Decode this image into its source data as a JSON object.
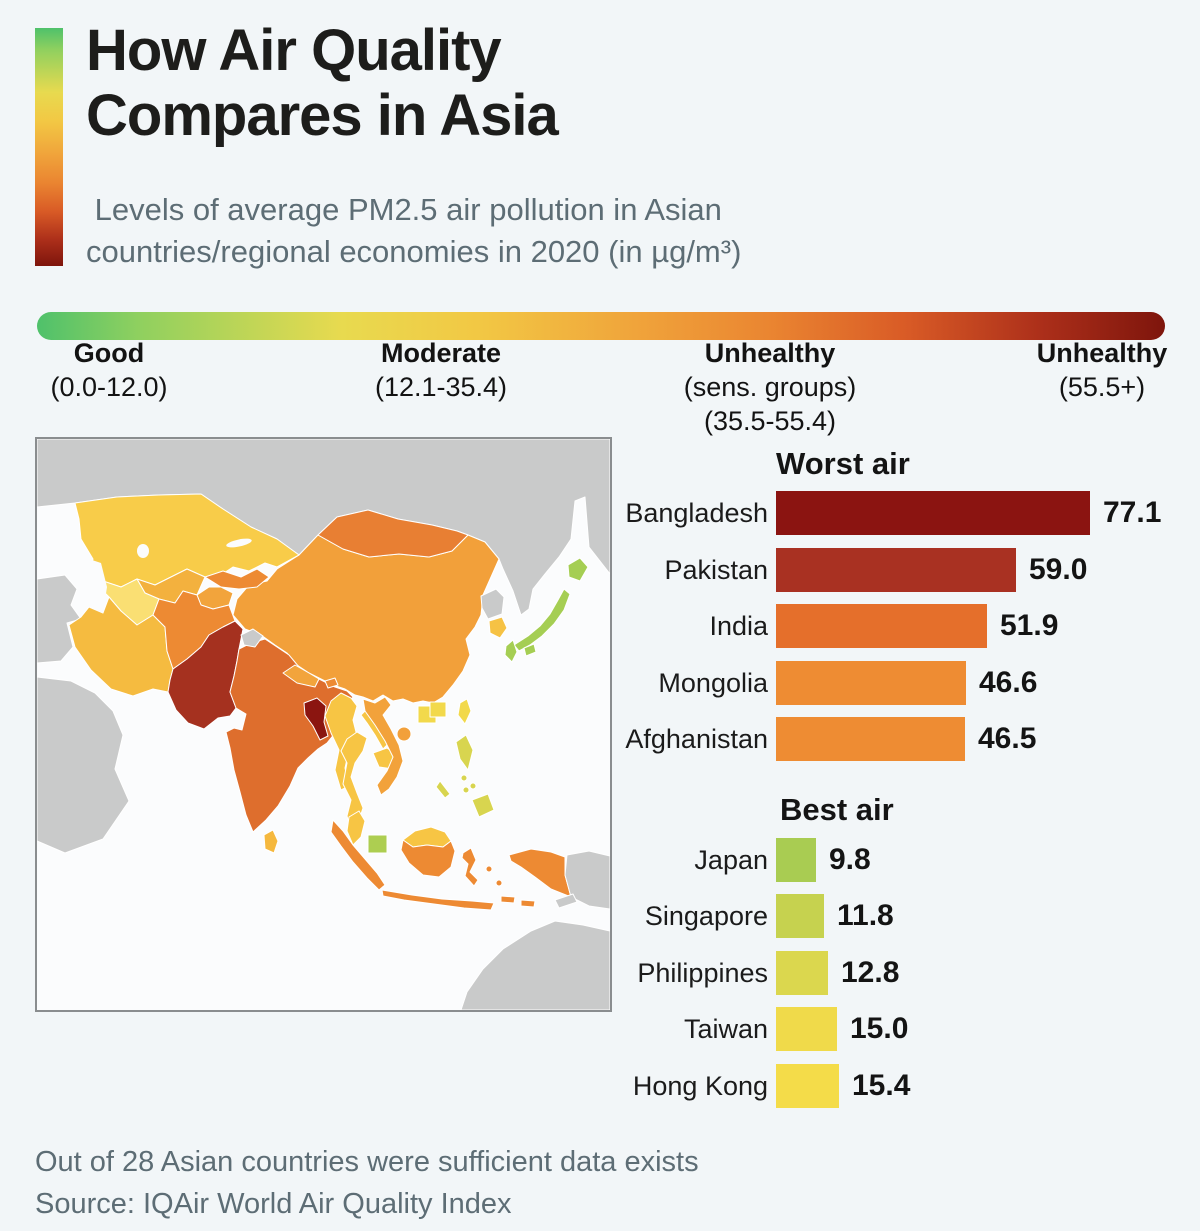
{
  "header": {
    "title": "How Air Quality\nCompares in Asia",
    "subtitle": " Levels of average PM2.5 air pollution in Asian\ncountries/regional economies in 2020 (in µg/m³)"
  },
  "legend": {
    "gradient_stops": [
      "#4FC16B 0%",
      "#8FD05F 9%",
      "#E8DA4F 27%",
      "#F2C844 39%",
      "#F0A43B 53%",
      "#EA8531 65%",
      "#D95B26 77%",
      "#AC2F1A 89%",
      "#7E150C 100%"
    ],
    "categories": [
      {
        "name": "Good",
        "range": "(0.0-12.0)"
      },
      {
        "name": "Moderate",
        "range": "(12.1-35.4)"
      },
      {
        "name": "Unhealthy",
        "range": "(sens. groups)\n(35.5-55.4)"
      },
      {
        "name": "Unhealthy",
        "range": "(55.5+)"
      }
    ]
  },
  "chart_data": [
    {
      "type": "bar",
      "title": "Worst air",
      "categories": [
        "Bangladesh",
        "Pakistan",
        "India",
        "Mongolia",
        "Afghanistan"
      ],
      "values": [
        77.1,
        59.0,
        51.9,
        46.6,
        46.5
      ],
      "value_labels": [
        "77.1",
        "59.0",
        "51.9",
        "46.6",
        "46.5"
      ],
      "bar_colors": [
        "#8B1411",
        "#A93122",
        "#E56F2B",
        "#EE8C33",
        "#EE8C33"
      ],
      "xlim": [
        0,
        77.1
      ],
      "unit": "µg/m³"
    },
    {
      "type": "bar",
      "title": "Best air",
      "categories": [
        "Japan",
        "Singapore",
        "Philippines",
        "Taiwan",
        "Hong Kong"
      ],
      "values": [
        9.8,
        11.8,
        12.8,
        15.0,
        15.4
      ],
      "value_labels": [
        "9.8",
        "11.8",
        "12.8",
        "15.0",
        "15.4"
      ],
      "bar_colors": [
        "#A9CC52",
        "#C6D24F",
        "#DBD74E",
        "#F0DA4A",
        "#F4DC49"
      ],
      "xlim": [
        0,
        77.1
      ],
      "unit": "µg/m³"
    }
  ],
  "map": {
    "region_colors": {
      "sea": "#FBFCFD",
      "no_data": "#C9CACA",
      "kazakhstan": "#F8CC49",
      "uzbekistan": "#F3B13E",
      "turkmenistan": "#FADF73",
      "kyrgyzstan": "#ED8A33",
      "tajikistan": "#F2A43C",
      "iran": "#F5BB40",
      "afghanistan": "#ED8A33",
      "pakistan": "#A5311F",
      "india": "#DE6E2D",
      "nepal": "#F2A43C",
      "bhutan": "#ED8A33",
      "bangladesh": "#8B1510",
      "sri_lanka": "#F5B83E",
      "china": "#F2A03A",
      "mongolia": "#E87F33",
      "myanmar": "#F7C544",
      "thailand": "#F7C544",
      "laos": "#F7C544",
      "cambodia": "#F7C544",
      "vietnam": "#F2A23B",
      "malaysia": "#F7C544",
      "singapore": "#ADCE51",
      "indonesia": "#ED8A33",
      "philippines": "#D8D54F",
      "taiwan": "#F2D94B",
      "hong_kong": "#F2D94B",
      "macau": "#F2D94B",
      "south_korea": "#F6C244",
      "japan": "#A5CE53"
    }
  },
  "footer": {
    "note": "Out of 28 Asian countries were sufficient data exists",
    "source": "Source: IQAir World Air Quality Index"
  }
}
